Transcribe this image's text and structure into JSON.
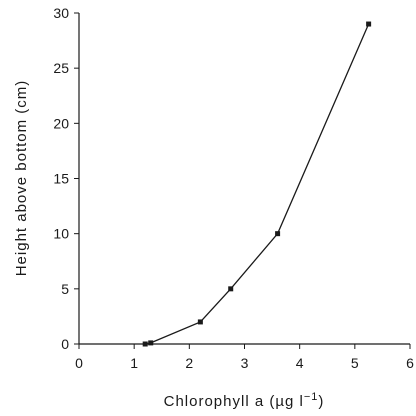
{
  "chart_data": {
    "type": "line",
    "xlabel": "Chlorophyll a (µg l",
    "xlabel_superscript": "−1",
    "xlabel_close": ")",
    "ylabel": "Height above bottom (cm)",
    "xlim": [
      0,
      6
    ],
    "ylim": [
      0,
      30
    ],
    "x_ticks": [
      0,
      1,
      2,
      3,
      4,
      5,
      6
    ],
    "y_ticks": [
      0,
      5,
      10,
      15,
      20,
      25,
      30
    ],
    "grid": false,
    "series": [
      {
        "x": [
          1.2,
          1.3,
          2.2,
          2.75,
          3.6,
          5.25
        ],
        "y": [
          0,
          0.1,
          2,
          5,
          10,
          29
        ]
      }
    ]
  }
}
